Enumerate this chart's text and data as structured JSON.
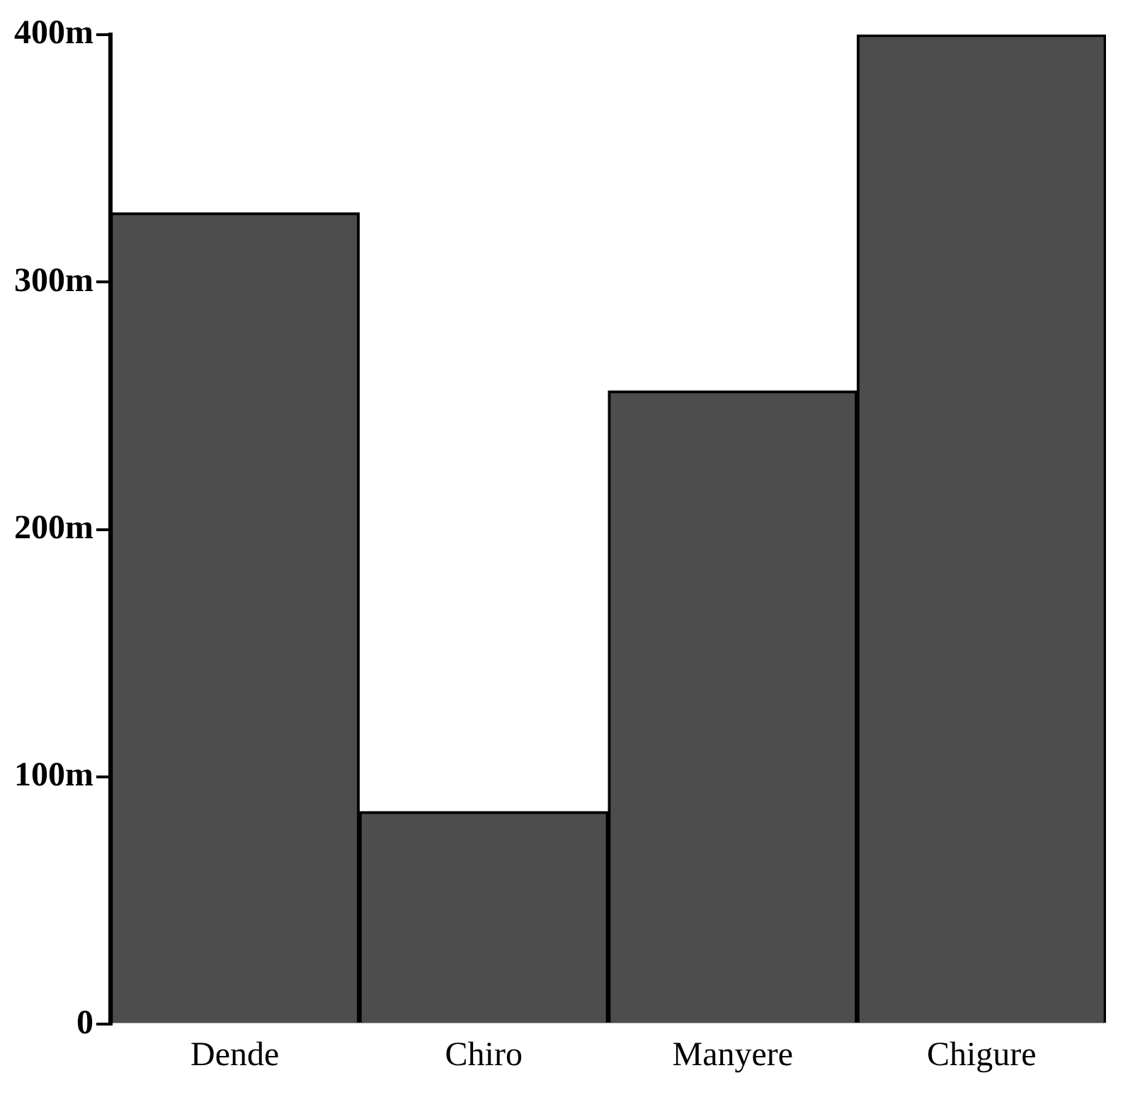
{
  "chart_data": {
    "type": "bar",
    "categories": [
      "Dende",
      "Chiro",
      "Manyere",
      "Chigure"
    ],
    "values": [
      328,
      86,
      256,
      400
    ],
    "color": "#4d4d4d",
    "ylim": [
      0,
      400
    ],
    "yticks": [
      0,
      {
        "value": 100,
        "label": "100m"
      },
      {
        "value": 200,
        "label": "200m"
      },
      {
        "value": 300,
        "label": "300m"
      },
      {
        "value": 400,
        "label": "400m"
      }
    ],
    "grid": false
  }
}
